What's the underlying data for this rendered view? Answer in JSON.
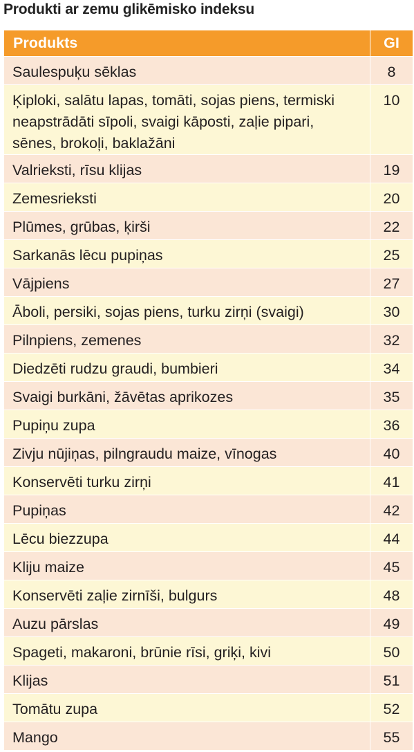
{
  "title": "Produkti ar zemu glikēmisko indeksu",
  "colors": {
    "header_bg": "#f59b2a",
    "row_odd": "#fbe6d6",
    "row_even": "#fdf7d5"
  },
  "table": {
    "headers": [
      "Produkts",
      "GI"
    ],
    "rows": [
      [
        "Saulespuķu sēklas",
        "8"
      ],
      [
        "Ķiploki, salātu lapas, tomāti, sojas piens, termiski neapstrādāti sīpoli, svaigi kāposti, zaļie pipari, sēnes, brokoļi, baklažāni",
        "10"
      ],
      [
        "Valrieksti, rīsu klijas",
        "19"
      ],
      [
        "Zemesrieksti",
        "20"
      ],
      [
        "Plūmes, grūbas, ķirši",
        "22"
      ],
      [
        "Sarkanās lēcu pupiņas",
        "25"
      ],
      [
        "Vājpiens",
        "27"
      ],
      [
        "Āboli, persiki, sojas piens, turku zirņi (svaigi)",
        "30"
      ],
      [
        "Pilnpiens, zemenes",
        "32"
      ],
      [
        "Diedzēti rudzu graudi, bumbieri",
        "34"
      ],
      [
        "Svaigi burkāni, žāvētas aprikozes",
        "35"
      ],
      [
        "Pupiņu zupa",
        "36"
      ],
      [
        "Zivju nūjiņas, pilngraudu maize, vīnogas",
        "40"
      ],
      [
        "Konservēti turku zirņi",
        "41"
      ],
      [
        "Pupiņas",
        "42"
      ],
      [
        "Lēcu biezzupa",
        "44"
      ],
      [
        "Kliju maize",
        "45"
      ],
      [
        "Konservēti zaļie zirnīši, bulgurs",
        "48"
      ],
      [
        "Auzu pārslas",
        "49"
      ],
      [
        "Spageti, makaroni, brūnie rīsi, griķi, kivi",
        "50"
      ],
      [
        "Klijas",
        "51"
      ],
      [
        "Tomātu zupa",
        "52"
      ],
      [
        "Mango",
        "55"
      ]
    ]
  }
}
